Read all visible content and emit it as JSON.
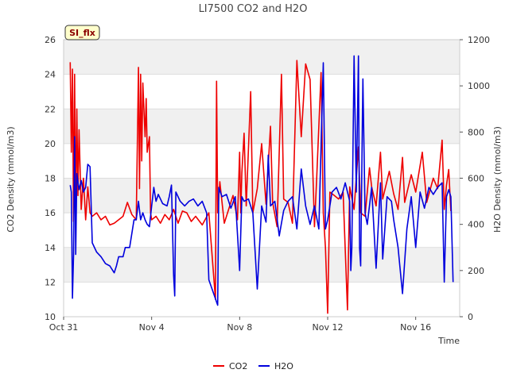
{
  "chart_data": {
    "type": "line",
    "title": "LI7500 CO2 and H2O",
    "xlabel": "Time",
    "ylabel_left": "CO2 Density (mmol/m3)",
    "ylabel_right": "H2O Density (mmol/m3)",
    "badge": "SI_flx",
    "x_ticks": [
      {
        "label": "Oct 31",
        "day": 0
      },
      {
        "label": "Nov 4",
        "day": 4
      },
      {
        "label": "Nov 8",
        "day": 8
      },
      {
        "label": "Nov 12",
        "day": 12
      },
      {
        "label": "Nov 16",
        "day": 16
      }
    ],
    "xlim": [
      0,
      18
    ],
    "ylim_left": [
      10,
      26
    ],
    "ylim_right": [
      0,
      1200
    ],
    "y_ticks_left": [
      10,
      12,
      14,
      16,
      18,
      20,
      22,
      24,
      26
    ],
    "y_ticks_right": [
      0,
      200,
      400,
      600,
      800,
      1000,
      1200
    ],
    "banded_background": true,
    "legend_position": "bottom-center",
    "series": [
      {
        "name": "CO2",
        "axis": "left",
        "color": "#ee0000",
        "points": [
          [
            0.3,
            24.7
          ],
          [
            0.35,
            19.5
          ],
          [
            0.4,
            24.3
          ],
          [
            0.45,
            15.5
          ],
          [
            0.5,
            24.0
          ],
          [
            0.55,
            15.8
          ],
          [
            0.6,
            22.0
          ],
          [
            0.65,
            17.0
          ],
          [
            0.7,
            20.8
          ],
          [
            0.8,
            16.2
          ],
          [
            0.9,
            18.0
          ],
          [
            1.0,
            15.6
          ],
          [
            1.1,
            17.5
          ],
          [
            1.2,
            16.0
          ],
          [
            1.3,
            15.8
          ],
          [
            1.5,
            16.0
          ],
          [
            1.7,
            15.6
          ],
          [
            1.9,
            15.8
          ],
          [
            2.1,
            15.3
          ],
          [
            2.3,
            15.4
          ],
          [
            2.5,
            15.6
          ],
          [
            2.7,
            15.8
          ],
          [
            2.9,
            16.6
          ],
          [
            3.1,
            15.9
          ],
          [
            3.3,
            15.6
          ],
          [
            3.4,
            24.4
          ],
          [
            3.45,
            17.4
          ],
          [
            3.5,
            24.0
          ],
          [
            3.55,
            19.0
          ],
          [
            3.6,
            23.5
          ],
          [
            3.7,
            20.4
          ],
          [
            3.75,
            22.6
          ],
          [
            3.8,
            19.5
          ],
          [
            3.9,
            20.4
          ],
          [
            3.95,
            16.0
          ],
          [
            4.0,
            15.6
          ],
          [
            4.2,
            15.8
          ],
          [
            4.4,
            15.4
          ],
          [
            4.6,
            15.9
          ],
          [
            4.8,
            15.6
          ],
          [
            5.0,
            16.2
          ],
          [
            5.2,
            15.4
          ],
          [
            5.4,
            16.1
          ],
          [
            5.6,
            16.0
          ],
          [
            5.8,
            15.5
          ],
          [
            6.0,
            15.8
          ],
          [
            6.3,
            15.3
          ],
          [
            6.6,
            16.0
          ],
          [
            6.9,
            11.0
          ],
          [
            6.95,
            23.6
          ],
          [
            7.0,
            16.0
          ],
          [
            7.1,
            17.8
          ],
          [
            7.3,
            15.4
          ],
          [
            7.5,
            16.2
          ],
          [
            7.7,
            17.0
          ],
          [
            7.9,
            15.6
          ],
          [
            8.0,
            19.5
          ],
          [
            8.05,
            16.0
          ],
          [
            8.1,
            18.3
          ],
          [
            8.2,
            20.6
          ],
          [
            8.3,
            16.4
          ],
          [
            8.5,
            23.0
          ],
          [
            8.6,
            16.0
          ],
          [
            8.8,
            17.4
          ],
          [
            9.0,
            20.0
          ],
          [
            9.2,
            16.5
          ],
          [
            9.4,
            21.0
          ],
          [
            9.5,
            16.6
          ],
          [
            9.7,
            15.2
          ],
          [
            9.9,
            24.0
          ],
          [
            10.0,
            16.8
          ],
          [
            10.2,
            16.6
          ],
          [
            10.4,
            15.4
          ],
          [
            10.6,
            24.8
          ],
          [
            10.8,
            20.4
          ],
          [
            11.0,
            24.6
          ],
          [
            11.2,
            23.7
          ],
          [
            11.4,
            15.2
          ],
          [
            11.5,
            18.0
          ],
          [
            11.7,
            24.1
          ],
          [
            11.8,
            16.0
          ],
          [
            11.9,
            14.0
          ],
          [
            12.0,
            10.2
          ],
          [
            12.1,
            17.2
          ],
          [
            12.3,
            17.0
          ],
          [
            12.5,
            16.8
          ],
          [
            12.7,
            17.2
          ],
          [
            12.9,
            10.4
          ],
          [
            13.0,
            17.5
          ],
          [
            13.2,
            16.2
          ],
          [
            13.4,
            19.8
          ],
          [
            13.5,
            16.0
          ],
          [
            13.7,
            15.8
          ],
          [
            13.9,
            18.6
          ],
          [
            14.0,
            17.5
          ],
          [
            14.2,
            16.4
          ],
          [
            14.4,
            19.5
          ],
          [
            14.5,
            16.8
          ],
          [
            14.8,
            18.4
          ],
          [
            15.0,
            17.1
          ],
          [
            15.2,
            16.2
          ],
          [
            15.4,
            19.2
          ],
          [
            15.5,
            16.6
          ],
          [
            15.8,
            18.2
          ],
          [
            16.0,
            17.2
          ],
          [
            16.3,
            19.5
          ],
          [
            16.5,
            16.6
          ],
          [
            16.8,
            18.0
          ],
          [
            17.0,
            17.4
          ],
          [
            17.2,
            20.2
          ],
          [
            17.3,
            16.2
          ],
          [
            17.4,
            17.6
          ],
          [
            17.5,
            18.5
          ],
          [
            17.6,
            16.1
          ]
        ]
      },
      {
        "name": "H2O",
        "axis": "right",
        "color": "#0000dd",
        "points": [
          [
            0.3,
            570
          ],
          [
            0.35,
            540
          ],
          [
            0.4,
            80
          ],
          [
            0.45,
            270
          ],
          [
            0.5,
            780
          ],
          [
            0.55,
            270
          ],
          [
            0.6,
            620
          ],
          [
            0.7,
            550
          ],
          [
            0.8,
            590
          ],
          [
            0.9,
            540
          ],
          [
            1.0,
            560
          ],
          [
            1.1,
            660
          ],
          [
            1.2,
            650
          ],
          [
            1.3,
            320
          ],
          [
            1.5,
            280
          ],
          [
            1.7,
            260
          ],
          [
            1.9,
            230
          ],
          [
            2.1,
            220
          ],
          [
            2.3,
            190
          ],
          [
            2.4,
            220
          ],
          [
            2.5,
            260
          ],
          [
            2.7,
            260
          ],
          [
            2.8,
            300
          ],
          [
            3.0,
            300
          ],
          [
            3.2,
            420
          ],
          [
            3.3,
            420
          ],
          [
            3.4,
            500
          ],
          [
            3.5,
            420
          ],
          [
            3.6,
            450
          ],
          [
            3.7,
            420
          ],
          [
            3.8,
            400
          ],
          [
            3.9,
            390
          ],
          [
            4.0,
            480
          ],
          [
            4.1,
            560
          ],
          [
            4.2,
            500
          ],
          [
            4.3,
            530
          ],
          [
            4.5,
            490
          ],
          [
            4.7,
            480
          ],
          [
            4.8,
            520
          ],
          [
            4.9,
            570
          ],
          [
            5.0,
            180
          ],
          [
            5.05,
            90
          ],
          [
            5.1,
            540
          ],
          [
            5.3,
            500
          ],
          [
            5.5,
            480
          ],
          [
            5.7,
            500
          ],
          [
            5.9,
            510
          ],
          [
            6.1,
            480
          ],
          [
            6.3,
            500
          ],
          [
            6.5,
            450
          ],
          [
            6.6,
            160
          ],
          [
            7.0,
            50
          ],
          [
            7.05,
            560
          ],
          [
            7.2,
            520
          ],
          [
            7.4,
            530
          ],
          [
            7.6,
            470
          ],
          [
            7.8,
            520
          ],
          [
            8.0,
            200
          ],
          [
            8.1,
            520
          ],
          [
            8.2,
            500
          ],
          [
            8.4,
            510
          ],
          [
            8.6,
            450
          ],
          [
            8.8,
            120
          ],
          [
            9.0,
            480
          ],
          [
            9.2,
            410
          ],
          [
            9.3,
            700
          ],
          [
            9.4,
            480
          ],
          [
            9.6,
            500
          ],
          [
            9.8,
            350
          ],
          [
            10.0,
            460
          ],
          [
            10.2,
            500
          ],
          [
            10.4,
            520
          ],
          [
            10.6,
            380
          ],
          [
            10.8,
            640
          ],
          [
            11.0,
            480
          ],
          [
            11.2,
            400
          ],
          [
            11.4,
            480
          ],
          [
            11.6,
            380
          ],
          [
            11.8,
            1100
          ],
          [
            11.9,
            380
          ],
          [
            12.0,
            420
          ],
          [
            12.2,
            540
          ],
          [
            12.4,
            560
          ],
          [
            12.6,
            510
          ],
          [
            12.8,
            580
          ],
          [
            13.0,
            500
          ],
          [
            13.05,
            200
          ],
          [
            13.1,
            300
          ],
          [
            13.2,
            1130
          ],
          [
            13.3,
            540
          ],
          [
            13.4,
            1130
          ],
          [
            13.45,
            300
          ],
          [
            13.5,
            220
          ],
          [
            13.6,
            1030
          ],
          [
            13.7,
            450
          ],
          [
            13.8,
            400
          ],
          [
            14.0,
            560
          ],
          [
            14.2,
            210
          ],
          [
            14.4,
            580
          ],
          [
            14.5,
            250
          ],
          [
            14.7,
            520
          ],
          [
            14.9,
            500
          ],
          [
            15.0,
            420
          ],
          [
            15.2,
            300
          ],
          [
            15.4,
            100
          ],
          [
            15.6,
            380
          ],
          [
            15.8,
            520
          ],
          [
            16.0,
            300
          ],
          [
            16.2,
            540
          ],
          [
            16.4,
            470
          ],
          [
            16.6,
            560
          ],
          [
            16.8,
            530
          ],
          [
            17.0,
            560
          ],
          [
            17.2,
            580
          ],
          [
            17.3,
            150
          ],
          [
            17.4,
            520
          ],
          [
            17.5,
            550
          ],
          [
            17.6,
            520
          ],
          [
            17.7,
            150
          ]
        ]
      }
    ]
  }
}
